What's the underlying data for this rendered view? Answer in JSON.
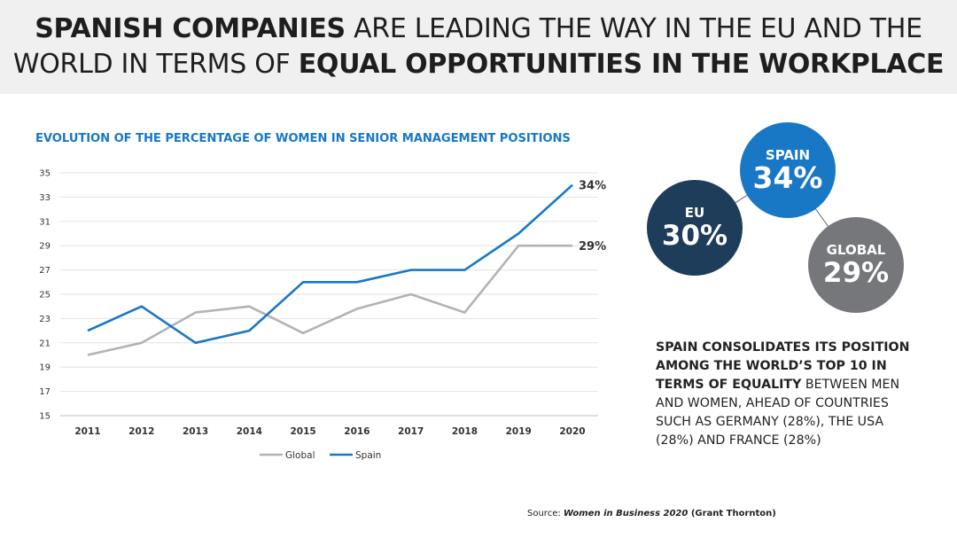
{
  "header": {
    "line1_bold": "SPANISH COMPANIES",
    "line1_rest": " ARE LEADING THE WAY IN THE EU AND THE",
    "line2_pre": "WORLD IN TERMS OF ",
    "line2_bold": "EQUAL OPPORTUNITIES IN THE WORKPLACE"
  },
  "chart_data": {
    "type": "line",
    "title": "EVOLUTION OF THE PERCENTAGE OF WOMEN IN SENIOR MANAGEMENT POSITIONS",
    "x": [
      "2011",
      "2012",
      "2013",
      "2014",
      "2015",
      "2016",
      "2017",
      "2018",
      "2019",
      "2020"
    ],
    "yticks": [
      15,
      17,
      19,
      21,
      23,
      25,
      27,
      29,
      31,
      33,
      35
    ],
    "ylim": [
      15,
      35
    ],
    "grid": true,
    "legend_position": "bottom",
    "series": [
      {
        "name": "Global",
        "color": "#b3b3b3",
        "values": [
          20,
          21,
          23.5,
          24,
          21.8,
          23.8,
          25,
          23.5,
          29,
          29
        ],
        "end_label": "29%"
      },
      {
        "name": "Spain",
        "color": "#1878c6",
        "values": [
          22,
          24,
          21,
          22,
          26,
          26,
          27,
          27,
          30,
          34
        ],
        "end_label": "34%"
      }
    ]
  },
  "bubbles": {
    "spain": {
      "label": "SPAIN",
      "value": "34%",
      "color": "#1878c6"
    },
    "eu": {
      "label": "EU",
      "value": "30%",
      "color": "#1d3d5b"
    },
    "global": {
      "label": "GLOBAL",
      "value": "29%",
      "color": "#75777a"
    }
  },
  "side_text": {
    "bold": "SPAIN CONSOLIDATES ITS POSITION AMONG THE WORLD’S TOP 10 IN TERMS OF EQUALITY",
    "rest": " BETWEEN MEN AND WOMEN, AHEAD OF COUNTRIES SUCH AS GERMANY (28%), THE USA (28%) AND FRANCE (28%)"
  },
  "source": {
    "prefix": "Source: ",
    "title": "Women in Business 2020",
    "org": " (Grant Thornton)"
  }
}
